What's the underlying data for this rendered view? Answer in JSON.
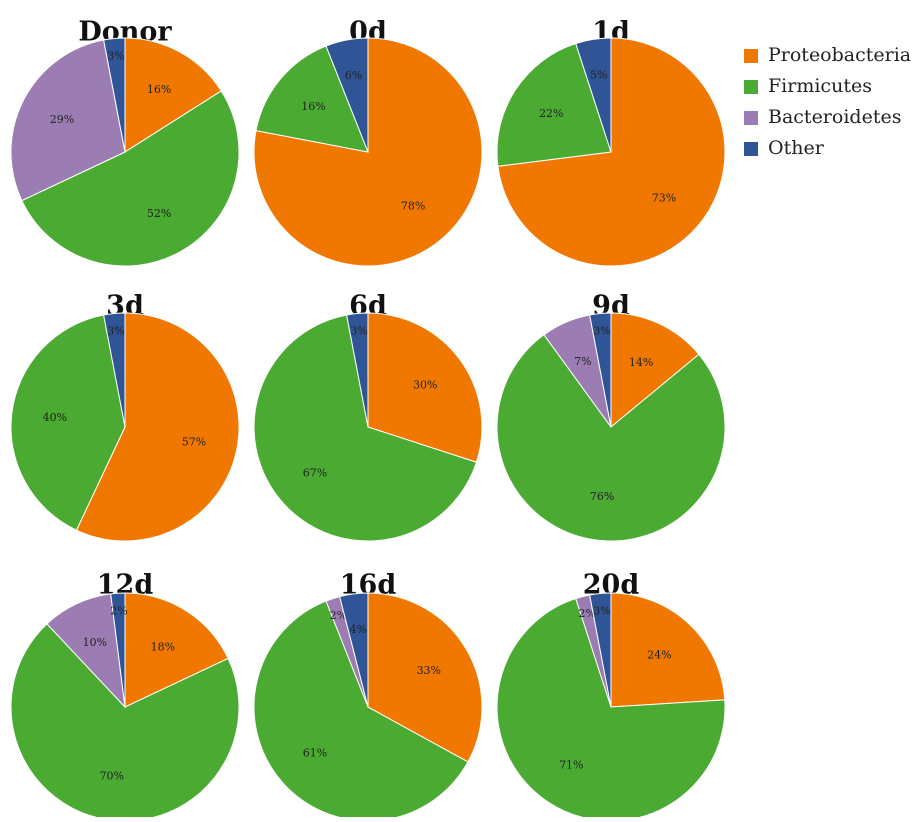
{
  "colors": {
    "Proteobacteria": "#F07800",
    "Firmicutes": "#4AAA31",
    "Bacteroidetes": "#9B7DB3",
    "Other": "#2F5597"
  },
  "legend": {
    "items": [
      "Proteobacteria",
      "Firmicutes",
      "Bacteroidetes",
      "Other"
    ]
  },
  "chart_data": [
    {
      "type": "pie",
      "title": "Donor",
      "slices": [
        {
          "category": "Proteobacteria",
          "value": 16,
          "label": "16%"
        },
        {
          "category": "Firmicutes",
          "value": 52,
          "label": "52%"
        },
        {
          "category": "Bacteroidetes",
          "value": 29,
          "label": "29%"
        },
        {
          "category": "Other",
          "value": 3,
          "label": "3%"
        }
      ]
    },
    {
      "type": "pie",
      "title": "0d",
      "slices": [
        {
          "category": "Proteobacteria",
          "value": 78,
          "label": "78%"
        },
        {
          "category": "Firmicutes",
          "value": 16,
          "label": "16%"
        },
        {
          "category": "Other",
          "value": 6,
          "label": "6%"
        }
      ]
    },
    {
      "type": "pie",
      "title": "1d",
      "slices": [
        {
          "category": "Proteobacteria",
          "value": 73,
          "label": "73%"
        },
        {
          "category": "Firmicutes",
          "value": 22,
          "label": "22%"
        },
        {
          "category": "Other",
          "value": 5,
          "label": "5%"
        }
      ]
    },
    {
      "type": "pie",
      "title": "3d",
      "slices": [
        {
          "category": "Proteobacteria",
          "value": 57,
          "label": "57%"
        },
        {
          "category": "Firmicutes",
          "value": 40,
          "label": "40%"
        },
        {
          "category": "Other",
          "value": 3,
          "label": "3%"
        }
      ]
    },
    {
      "type": "pie",
      "title": "6d",
      "slices": [
        {
          "category": "Proteobacteria",
          "value": 30,
          "label": "30%"
        },
        {
          "category": "Firmicutes",
          "value": 67,
          "label": "67%"
        },
        {
          "category": "Other",
          "value": 3,
          "label": "3%"
        }
      ]
    },
    {
      "type": "pie",
      "title": "9d",
      "slices": [
        {
          "category": "Proteobacteria",
          "value": 14,
          "label": "14%"
        },
        {
          "category": "Firmicutes",
          "value": 76,
          "label": "76%"
        },
        {
          "category": "Bacteroidetes",
          "value": 7,
          "label": "7%"
        },
        {
          "category": "Other",
          "value": 3,
          "label": "3%"
        }
      ]
    },
    {
      "type": "pie",
      "title": "12d",
      "slices": [
        {
          "category": "Proteobacteria",
          "value": 18,
          "label": "18%"
        },
        {
          "category": "Firmicutes",
          "value": 70,
          "label": "70%"
        },
        {
          "category": "Bacteroidetes",
          "value": 10,
          "label": "10%"
        },
        {
          "category": "Other",
          "value": 2,
          "label": "2%"
        }
      ]
    },
    {
      "type": "pie",
      "title": "16d",
      "slices": [
        {
          "category": "Proteobacteria",
          "value": 33,
          "label": "33%"
        },
        {
          "category": "Firmicutes",
          "value": 61,
          "label": "61%"
        },
        {
          "category": "Bacteroidetes",
          "value": 2,
          "label": "2%"
        },
        {
          "category": "Other",
          "value": 4,
          "label": "4%"
        }
      ]
    },
    {
      "type": "pie",
      "title": "20d",
      "slices": [
        {
          "category": "Proteobacteria",
          "value": 24,
          "label": "24%"
        },
        {
          "category": "Firmicutes",
          "value": 71,
          "label": "71%"
        },
        {
          "category": "Bacteroidetes",
          "value": 2,
          "label": "2%"
        },
        {
          "category": "Other",
          "value": 3,
          "label": "3%"
        }
      ]
    }
  ]
}
